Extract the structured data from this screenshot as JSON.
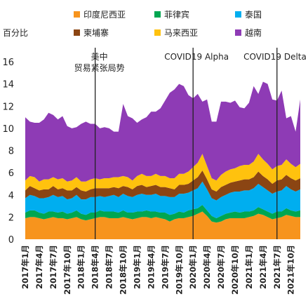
{
  "chart_data": {
    "type": "area",
    "stacked": true,
    "ylabel": "百分比",
    "ylim": [
      0,
      16
    ],
    "yticks": [
      0,
      2,
      4,
      6,
      8,
      10,
      12,
      14,
      16
    ],
    "grid": false,
    "legend_position": "top",
    "x_tick_labels": [
      "2017年1月",
      "2017年4月",
      "2017年7月",
      "2017年10月",
      "2018年1月",
      "2018年4月",
      "2018年7月",
      "2018年10月",
      "2019年1月",
      "2019年4月",
      "2019年7月",
      "2019年10月",
      "2020年1月",
      "2020年4月",
      "2020年7月",
      "2020年10月",
      "2021年1月",
      "2021年4月",
      "2021年7月",
      "2021年10月"
    ],
    "x_start": "2017年1月",
    "series": [
      {
        "name": "印度尼西亚",
        "color": "#F7941D",
        "values": [
          1.9,
          2.0,
          2.0,
          1.9,
          1.8,
          1.9,
          2.0,
          1.9,
          1.9,
          1.8,
          1.9,
          2.0,
          1.8,
          1.7,
          1.8,
          1.9,
          2.0,
          2.0,
          1.9,
          1.9,
          1.9,
          2.0,
          1.9,
          1.8,
          1.9,
          2.0,
          2.0,
          1.9,
          2.0,
          1.9,
          1.8,
          1.6,
          1.8,
          1.9,
          1.9,
          2.0,
          2.1,
          2.3,
          2.5,
          2.1,
          1.6,
          1.5,
          1.6,
          1.8,
          1.9,
          1.9,
          1.9,
          1.9,
          2.0,
          2.1,
          2.3,
          2.2,
          2.0,
          1.8,
          1.9,
          2.0,
          2.2,
          2.1,
          2.0,
          2.0
        ]
      },
      {
        "name": "菲律宾",
        "color": "#00A651",
        "values": [
          0.5,
          0.6,
          0.6,
          0.5,
          0.5,
          0.6,
          0.5,
          0.5,
          0.6,
          0.5,
          0.5,
          0.6,
          0.5,
          0.5,
          0.6,
          0.5,
          0.6,
          0.5,
          0.6,
          0.6,
          0.5,
          0.6,
          0.5,
          0.6,
          0.6,
          0.5,
          0.6,
          0.6,
          0.5,
          0.5,
          0.6,
          0.6,
          0.5,
          0.6,
          0.5,
          0.6,
          0.6,
          0.5,
          0.6,
          0.5,
          0.5,
          0.4,
          0.5,
          0.5,
          0.5,
          0.6,
          0.5,
          0.6,
          0.5,
          0.5,
          0.6,
          0.5,
          0.5,
          0.5,
          0.6,
          0.5,
          0.6,
          0.5,
          0.5,
          0.6
        ]
      },
      {
        "name": "泰国",
        "color": "#00AEEF",
        "values": [
          1.3,
          1.4,
          1.3,
          1.3,
          1.4,
          1.3,
          1.5,
          1.4,
          1.4,
          1.3,
          1.3,
          1.4,
          1.3,
          1.4,
          1.4,
          1.4,
          1.3,
          1.3,
          1.4,
          1.5,
          1.4,
          1.5,
          1.5,
          1.4,
          1.5,
          1.6,
          1.4,
          1.5,
          1.6,
          1.5,
          1.5,
          1.6,
          1.5,
          1.6,
          1.7,
          1.6,
          1.7,
          1.8,
          2.1,
          1.9,
          1.6,
          1.6,
          1.7,
          1.7,
          1.8,
          1.8,
          1.9,
          1.9,
          1.9,
          2.0,
          2.1,
          2.0,
          1.9,
          1.8,
          1.8,
          1.9,
          2.0,
          1.9,
          1.8,
          1.9
        ]
      },
      {
        "name": "柬埔寨",
        "color": "#8B4513",
        "values": [
          0.7,
          0.8,
          0.7,
          0.7,
          0.8,
          0.7,
          0.8,
          0.7,
          0.7,
          0.8,
          0.7,
          0.7,
          0.8,
          0.7,
          0.7,
          0.8,
          0.7,
          0.8,
          0.7,
          0.7,
          0.8,
          0.7,
          0.8,
          0.7,
          0.8,
          0.8,
          0.7,
          0.8,
          0.8,
          0.8,
          0.8,
          0.8,
          0.7,
          0.8,
          0.8,
          0.8,
          0.9,
          1.0,
          1.0,
          0.9,
          0.8,
          0.8,
          0.9,
          0.9,
          0.9,
          0.9,
          1.0,
          1.0,
          1.0,
          1.0,
          1.1,
          1.0,
          1.0,
          0.9,
          1.0,
          1.0,
          1.0,
          1.0,
          1.0,
          1.0
        ]
      },
      {
        "name": "马来西亚",
        "color": "#FFC20E",
        "values": [
          0.9,
          0.9,
          1.0,
          0.8,
          0.9,
          0.9,
          0.8,
          0.9,
          0.9,
          0.8,
          0.9,
          0.9,
          0.8,
          0.9,
          0.9,
          0.9,
          0.8,
          0.9,
          0.9,
          0.9,
          1.0,
          0.9,
          0.9,
          0.8,
          0.9,
          1.0,
          1.0,
          0.9,
          1.0,
          1.0,
          1.0,
          0.9,
          1.0,
          1.0,
          1.0,
          1.1,
          1.2,
          1.3,
          1.5,
          1.2,
          1.0,
          1.0,
          1.1,
          1.2,
          1.2,
          1.2,
          1.3,
          1.3,
          1.3,
          1.4,
          1.6,
          1.5,
          1.4,
          1.3,
          1.3,
          1.3,
          1.4,
          1.3,
          1.2,
          1.3
        ]
      },
      {
        "name": "越南",
        "color": "#8E3BB5",
        "values": [
          5.7,
          4.9,
          4.9,
          5.3,
          5.4,
          6.0,
          5.6,
          5.4,
          5.6,
          5.0,
          4.7,
          4.5,
          5.2,
          5.4,
          5.0,
          4.9,
          4.6,
          4.6,
          4.5,
          4.1,
          4.1,
          6.5,
          5.5,
          5.6,
          4.8,
          4.9,
          5.3,
          5.8,
          5.6,
          6.1,
          6.8,
          7.7,
          8.0,
          8.1,
          7.9,
          6.9,
          6.2,
          6.2,
          4.7,
          6.0,
          5.1,
          5.3,
          6.6,
          6.3,
          6.0,
          6.1,
          5.3,
          5.1,
          5.6,
          6.8,
          5.4,
          7.0,
          7.2,
          6.3,
          5.9,
          6.7,
          3.7,
          4.3,
          3.2,
          5.8
        ]
      }
    ],
    "annotations": [
      {
        "at": "2018年4月",
        "lines": [
          "美中",
          "贸易紧张局势"
        ]
      },
      {
        "at": "2020年1月",
        "lines": [
          "COVID19 Alpha"
        ]
      },
      {
        "at": "2021年7月",
        "lines": [
          "COVID19 Delta"
        ]
      }
    ]
  }
}
